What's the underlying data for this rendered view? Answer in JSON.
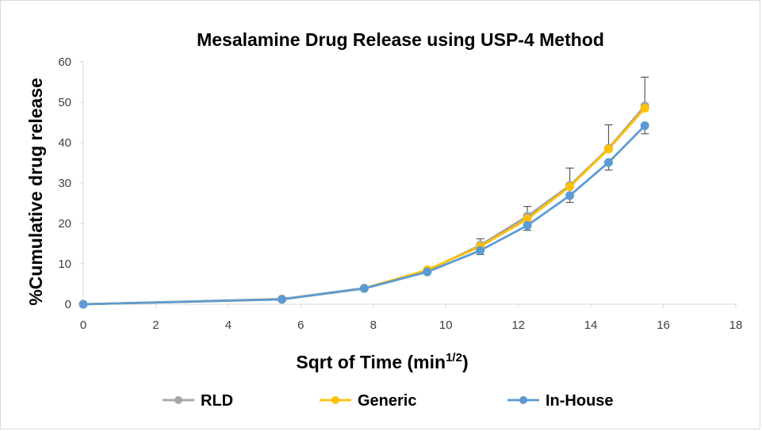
{
  "chart_data": {
    "type": "line",
    "title": "Mesalamine Drug Release using USP-4 Method",
    "xlabel": "Sqrt of Time (min",
    "xlabel_sup": "1/2",
    "xlabel_end": ")",
    "ylabel": "%Cumulative drug release",
    "xlim": [
      0,
      18
    ],
    "ylim": [
      0,
      60
    ],
    "xticks": [
      0,
      2,
      4,
      6,
      8,
      10,
      12,
      14,
      16,
      18
    ],
    "yticks": [
      0,
      10,
      20,
      30,
      40,
      50,
      60
    ],
    "grid": false,
    "legend": "bottom",
    "x": [
      0,
      5.48,
      7.75,
      9.49,
      10.95,
      12.25,
      13.42,
      14.49,
      15.49
    ],
    "series": [
      {
        "name": "RLD",
        "color": "#a5a5a5",
        "values": [
          0,
          1.3,
          4.0,
          8.3,
          14.6,
          21.8,
          29.4,
          38.6,
          49.1
        ],
        "error_plus": [
          0,
          0,
          0,
          0,
          1.6,
          2.4,
          4.3,
          5.8,
          7.1
        ]
      },
      {
        "name": "Generic",
        "color": "#ffc000",
        "values": [
          0,
          1.2,
          3.9,
          8.5,
          14.3,
          21.1,
          29.1,
          38.4,
          48.5
        ],
        "error_plus": [
          0,
          0,
          0,
          0,
          0,
          0,
          0,
          0,
          0
        ]
      },
      {
        "name": "In-House",
        "color": "#5b9bd5",
        "values": [
          0,
          1.2,
          3.9,
          8.0,
          13.3,
          19.5,
          26.9,
          35.1,
          44.2
        ],
        "error_minus": [
          0,
          0,
          0,
          0,
          1.0,
          1.2,
          1.7,
          1.9,
          2.0
        ]
      }
    ]
  }
}
